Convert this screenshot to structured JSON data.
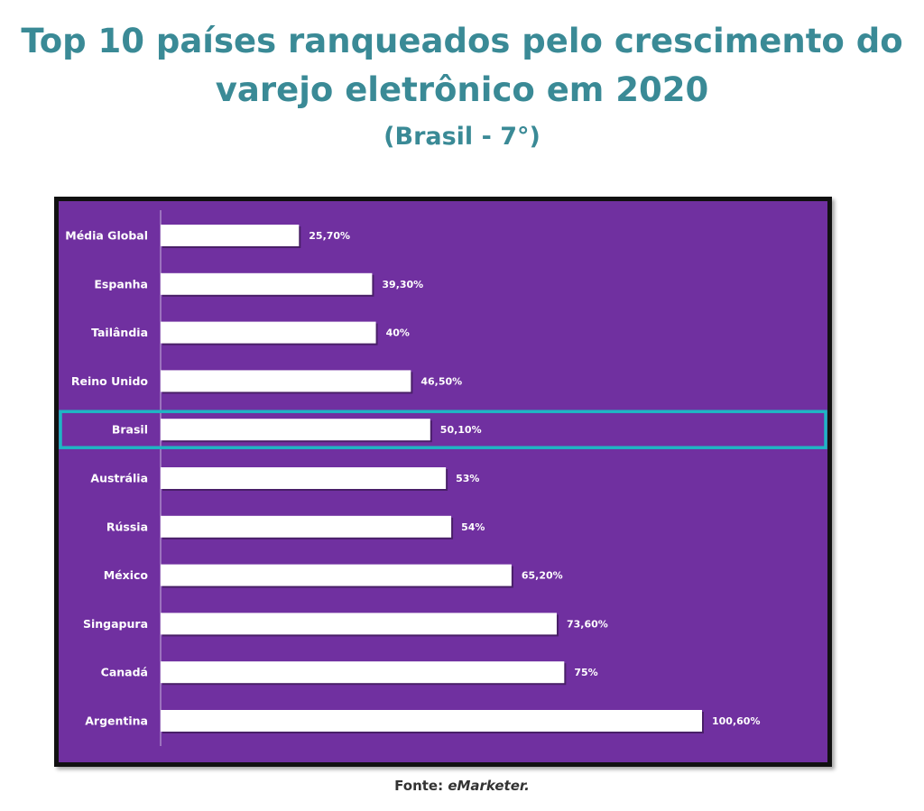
{
  "title_line1": "Top 10 países ranqueados pelo crescimento do",
  "title_line2": "varejo eletrônico em 2020",
  "subtitle": "(Brasil - 7°)",
  "source_label": "Fonte: ",
  "source_name": "eMarketer.",
  "colors": {
    "title": "#3a8a96",
    "chart_background": "#7030a0",
    "bar_fill": "#ffffff",
    "highlight_box": "#1fb5c4",
    "label_text": "#ffffff"
  },
  "chart_data": {
    "type": "bar",
    "orientation": "horizontal",
    "categories": [
      "Média Global",
      "Espanha",
      "Tailândia",
      "Reino Unido",
      "Brasil",
      "Austrália",
      "Rússia",
      "México",
      "Singapura",
      "Canadá",
      "Argentina"
    ],
    "values": [
      25.7,
      39.3,
      40,
      46.5,
      50.1,
      53,
      54,
      65.2,
      73.6,
      75,
      100.6
    ],
    "value_labels": [
      "25,70%",
      "39,30%",
      "40%",
      "46,50%",
      "50,10%",
      "53%",
      "54%",
      "65,20%",
      "73,60%",
      "75%",
      "100,60%"
    ],
    "highlighted_category": "Brasil",
    "xlim": [
      0,
      100.6
    ],
    "grid": false,
    "legend": "none"
  }
}
